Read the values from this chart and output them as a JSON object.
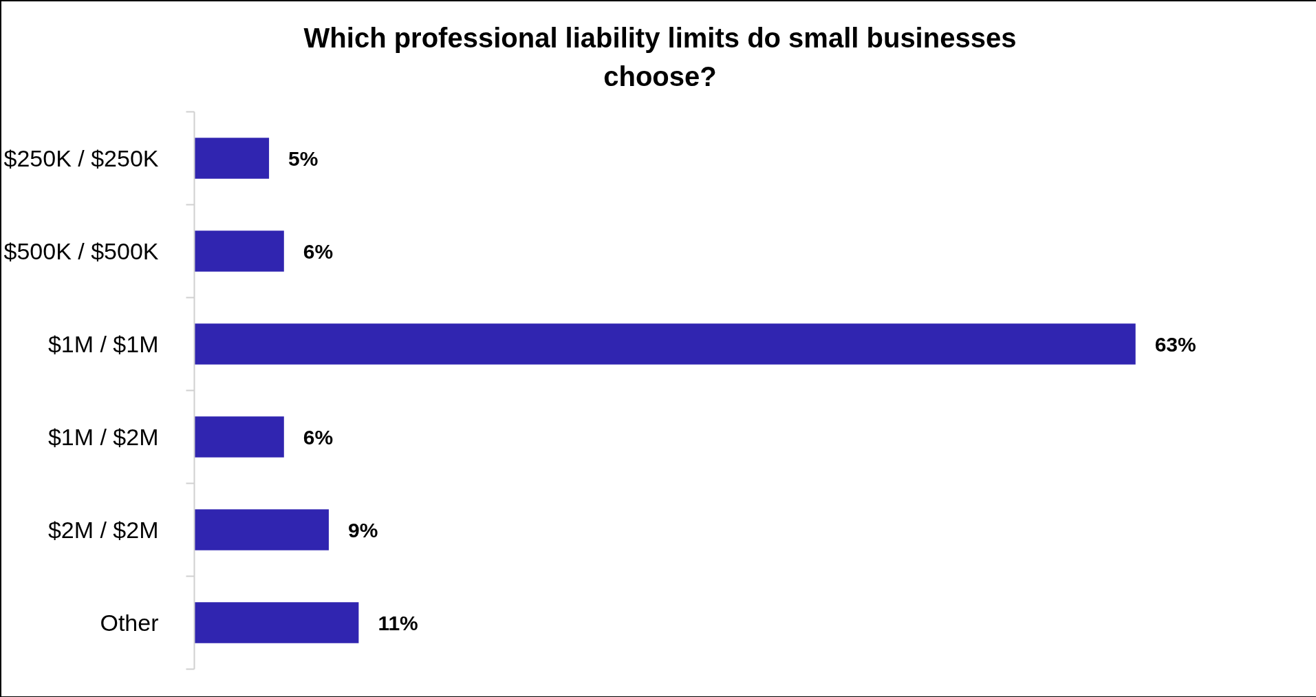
{
  "chart_data": {
    "type": "bar",
    "orientation": "horizontal",
    "title": "Which professional liability limits do small businesses choose?",
    "categories": [
      "$250K / $250K",
      "$500K / $500K",
      "$1M / $1M",
      "$1M / $2M",
      "$2M / $2M",
      "Other"
    ],
    "values": [
      5,
      6,
      63,
      6,
      9,
      11
    ],
    "value_labels": [
      "5%",
      "6%",
      "63%",
      "6%",
      "9%",
      "11%"
    ],
    "color": "#3025b0"
  }
}
